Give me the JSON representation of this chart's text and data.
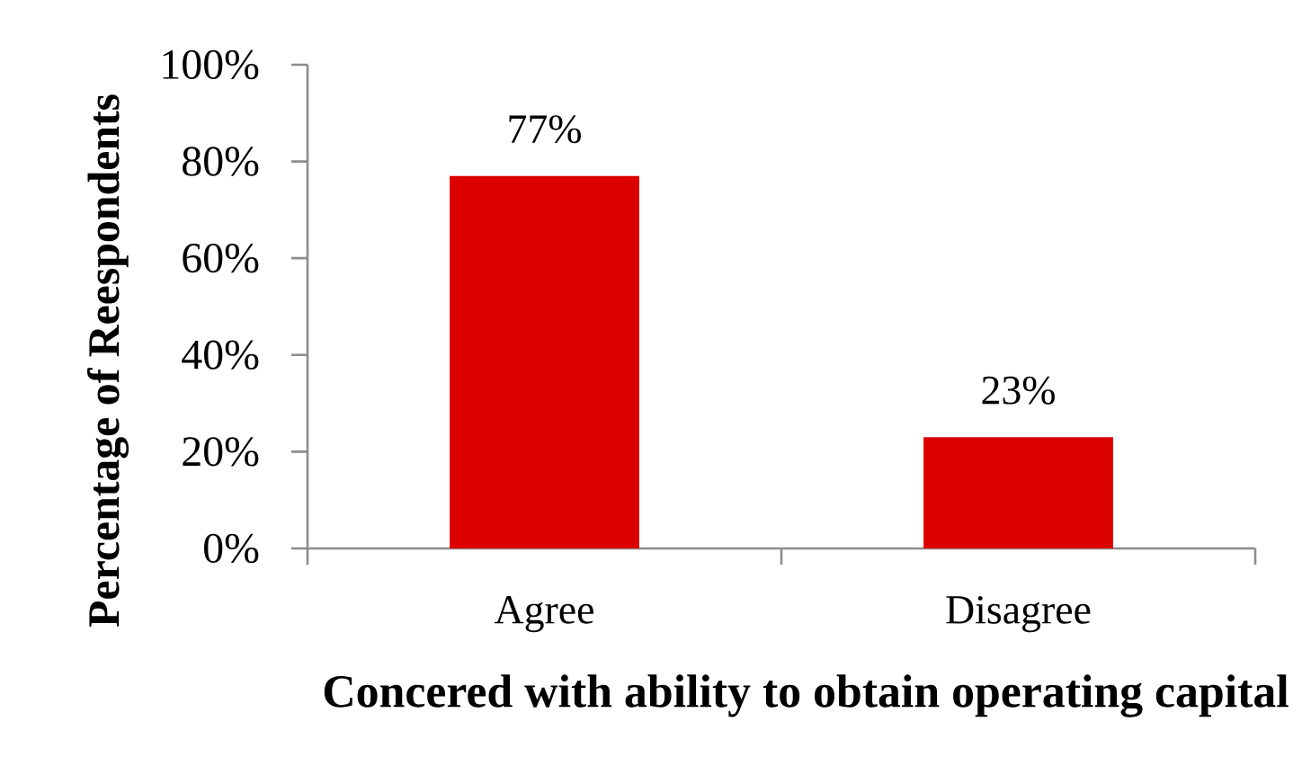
{
  "chart_data": {
    "type": "bar",
    "categories": [
      "Agree",
      "Disagree"
    ],
    "values": [
      77,
      23
    ],
    "color": "#dd0000",
    "value_labels": [
      "77%",
      "23%"
    ],
    "ylim": [
      0,
      100
    ],
    "yticks": [
      {
        "value": 0,
        "label": "0%"
      },
      {
        "value": 20,
        "label": "20%"
      },
      {
        "value": 40,
        "label": "40%"
      },
      {
        "value": 60,
        "label": "60%"
      },
      {
        "value": 80,
        "label": "80%"
      },
      {
        "value": 100,
        "label": "100%"
      }
    ],
    "ylabel": "Percentage of Reespondents",
    "xlabel": "Concered with ability to obtain operating capital"
  }
}
